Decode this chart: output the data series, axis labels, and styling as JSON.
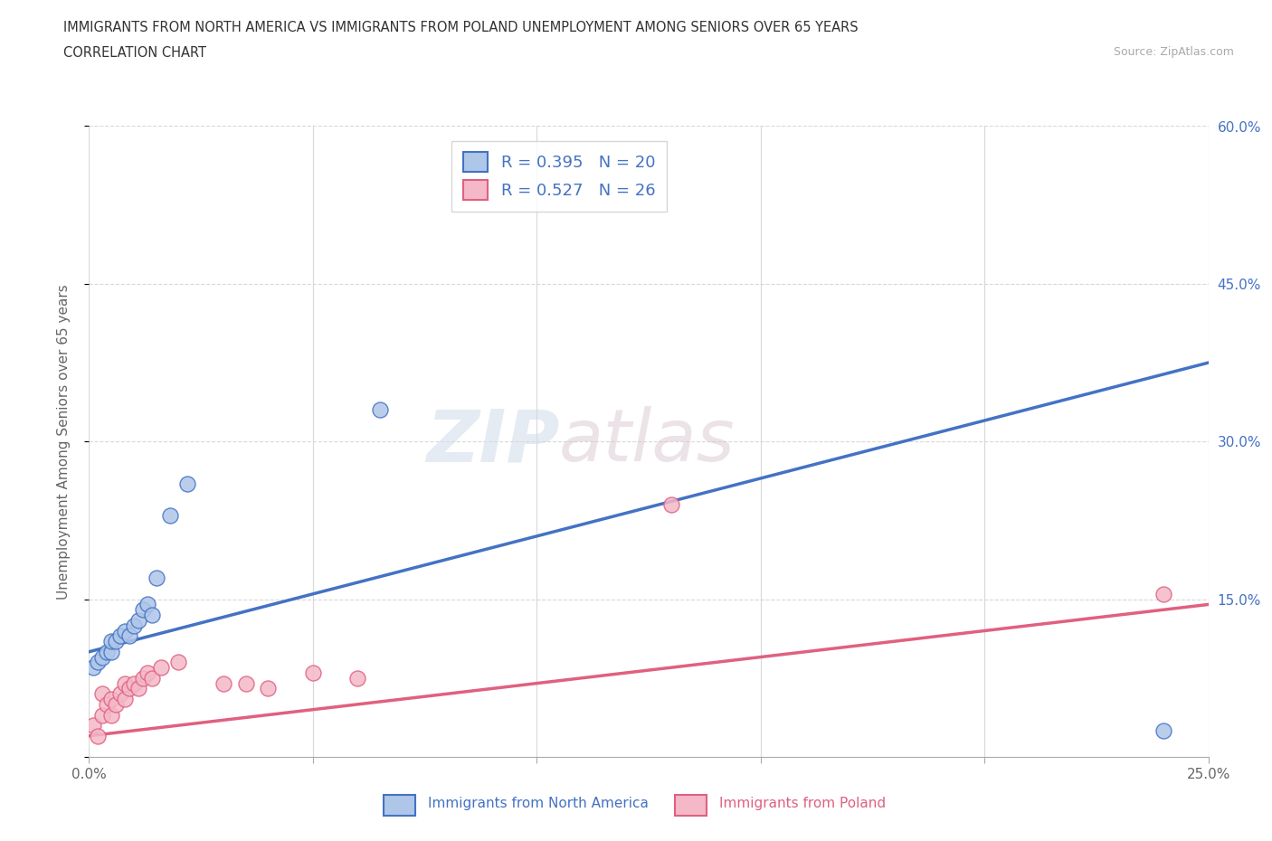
{
  "title_line1": "IMMIGRANTS FROM NORTH AMERICA VS IMMIGRANTS FROM POLAND UNEMPLOYMENT AMONG SENIORS OVER 65 YEARS",
  "title_line2": "CORRELATION CHART",
  "source_text": "Source: ZipAtlas.com",
  "ylabel": "Unemployment Among Seniors over 65 years",
  "xlabel_north_america": "Immigrants from North America",
  "xlabel_poland": "Immigrants from Poland",
  "watermark_zip": "ZIP",
  "watermark_atlas": "atlas",
  "R_north_america": 0.395,
  "N_north_america": 20,
  "R_poland": 0.527,
  "N_poland": 26,
  "xlim": [
    0.0,
    0.25
  ],
  "ylim": [
    0.0,
    0.6
  ],
  "xticks": [
    0.0,
    0.05,
    0.1,
    0.15,
    0.2,
    0.25
  ],
  "xticklabels": [
    "0.0%",
    "",
    "",
    "",
    "",
    "25.0%"
  ],
  "yticks": [
    0.0,
    0.15,
    0.3,
    0.45,
    0.6
  ],
  "yticklabels": [
    "",
    "15.0%",
    "30.0%",
    "45.0%",
    "60.0%"
  ],
  "color_north_america": "#aec6e8",
  "color_north_america_line": "#4472c4",
  "color_poland": "#f4b8c8",
  "color_poland_line": "#e06080",
  "legend_text_color": "#4472c4",
  "background_color": "#ffffff",
  "grid_color": "#d8d8d8",
  "na_line_x0": 0.0,
  "na_line_y0": 0.1,
  "na_line_x1": 0.25,
  "na_line_y1": 0.375,
  "po_line_x0": 0.0,
  "po_line_y0": 0.02,
  "po_line_x1": 0.25,
  "po_line_y1": 0.145,
  "north_america_x": [
    0.001,
    0.002,
    0.003,
    0.004,
    0.005,
    0.005,
    0.006,
    0.007,
    0.008,
    0.009,
    0.01,
    0.011,
    0.012,
    0.013,
    0.014,
    0.015,
    0.018,
    0.022,
    0.065,
    0.24
  ],
  "north_america_y": [
    0.085,
    0.09,
    0.095,
    0.1,
    0.1,
    0.11,
    0.11,
    0.115,
    0.12,
    0.115,
    0.125,
    0.13,
    0.14,
    0.145,
    0.135,
    0.17,
    0.23,
    0.26,
    0.33,
    0.025
  ],
  "poland_x": [
    0.001,
    0.002,
    0.003,
    0.003,
    0.004,
    0.005,
    0.005,
    0.006,
    0.007,
    0.008,
    0.008,
    0.009,
    0.01,
    0.011,
    0.012,
    0.013,
    0.014,
    0.016,
    0.02,
    0.03,
    0.035,
    0.04,
    0.05,
    0.06,
    0.13,
    0.24
  ],
  "poland_y": [
    0.03,
    0.02,
    0.04,
    0.06,
    0.05,
    0.04,
    0.055,
    0.05,
    0.06,
    0.055,
    0.07,
    0.065,
    0.07,
    0.065,
    0.075,
    0.08,
    0.075,
    0.085,
    0.09,
    0.07,
    0.07,
    0.065,
    0.08,
    0.075,
    0.24,
    0.155
  ]
}
